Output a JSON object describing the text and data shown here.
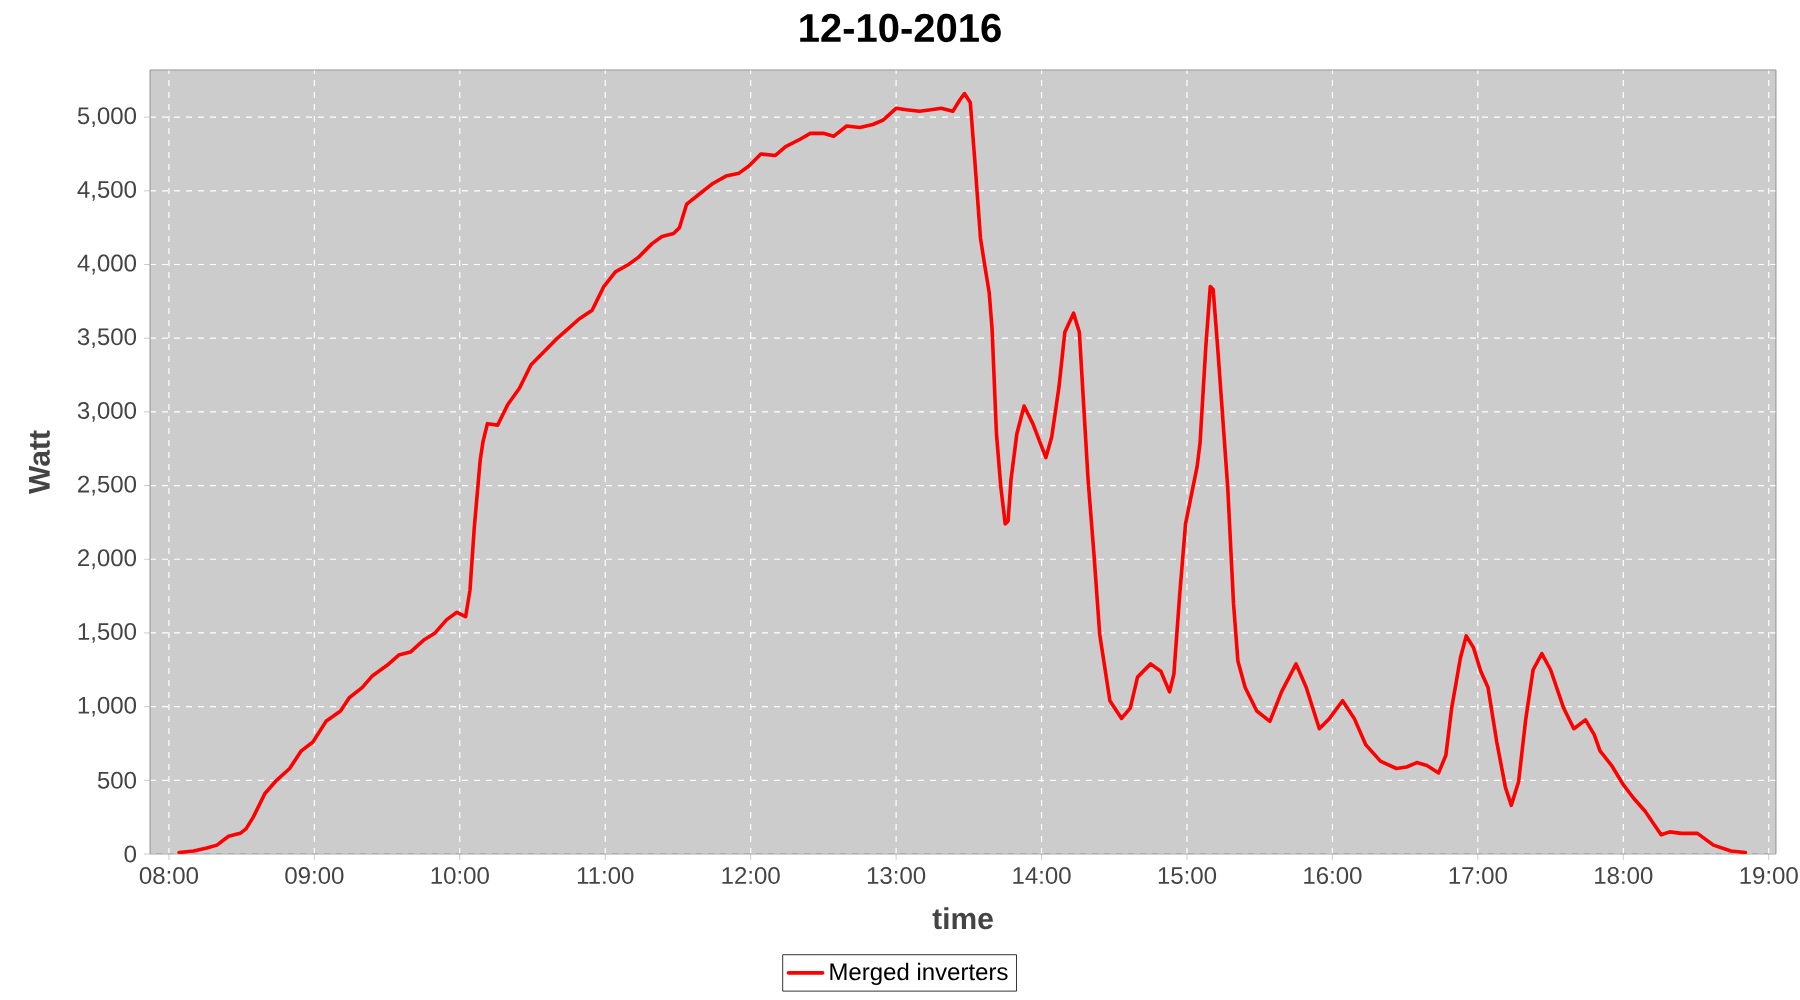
{
  "chart_data": {
    "type": "line",
    "title": "12-10-2016",
    "xlabel": "time",
    "ylabel": "Watt",
    "x": [
      8.07,
      8.17,
      8.26,
      8.33,
      8.41,
      8.49,
      8.53,
      8.58,
      8.66,
      8.74,
      8.83,
      8.91,
      8.99,
      9.08,
      9.18,
      9.24,
      9.33,
      9.4,
      9.5,
      9.58,
      9.66,
      9.75,
      9.83,
      9.91,
      9.98,
      10.04,
      10.07,
      10.1,
      10.14,
      10.16,
      10.19,
      10.26,
      10.33,
      10.41,
      10.49,
      10.57,
      10.66,
      10.74,
      10.82,
      10.91,
      10.99,
      11.07,
      11.16,
      11.23,
      11.32,
      11.39,
      11.47,
      11.51,
      11.56,
      11.65,
      11.74,
      11.83,
      11.92,
      11.99,
      12.07,
      12.17,
      12.24,
      12.34,
      12.41,
      12.5,
      12.57,
      12.66,
      12.75,
      12.84,
      12.91,
      13.0,
      13.07,
      13.16,
      13.24,
      13.31,
      13.39,
      13.44,
      13.47,
      13.51,
      13.54,
      13.58,
      13.61,
      13.64,
      13.66,
      13.69,
      13.72,
      13.75,
      13.77,
      13.79,
      13.83,
      13.88,
      13.94,
      14.03,
      14.07,
      14.12,
      14.16,
      14.22,
      14.26,
      14.32,
      14.36,
      14.4,
      14.47,
      14.55,
      14.61,
      14.66,
      14.75,
      14.82,
      14.88,
      14.91,
      14.95,
      14.99,
      15.07,
      15.09,
      15.13,
      15.16,
      15.18,
      15.21,
      15.24,
      15.28,
      15.32,
      15.35,
      15.4,
      15.48,
      15.57,
      15.65,
      15.75,
      15.82,
      15.91,
      15.98,
      16.07,
      16.15,
      16.23,
      16.33,
      16.44,
      16.51,
      16.58,
      16.65,
      16.73,
      16.78,
      16.82,
      16.88,
      16.92,
      16.97,
      17.02,
      17.07,
      17.13,
      17.19,
      17.23,
      17.28,
      17.33,
      17.38,
      17.44,
      17.5,
      17.59,
      17.66,
      17.74,
      17.8,
      17.84,
      17.92,
      18.0,
      18.07,
      18.15,
      18.26,
      18.32,
      18.4,
      18.51,
      18.62,
      18.74,
      18.84
    ],
    "series": [
      {
        "name": "Merged inverters",
        "color": "#ff0000",
        "values": [
          10,
          20,
          40,
          60,
          120,
          140,
          170,
          250,
          410,
          500,
          580,
          700,
          760,
          900,
          970,
          1060,
          1130,
          1210,
          1280,
          1350,
          1370,
          1450,
          1500,
          1590,
          1640,
          1610,
          1790,
          2220,
          2670,
          2800,
          2920,
          2910,
          3050,
          3160,
          3320,
          3400,
          3490,
          3560,
          3630,
          3690,
          3850,
          3950,
          4000,
          4050,
          4140,
          4190,
          4210,
          4250,
          4410,
          4480,
          4550,
          4600,
          4620,
          4670,
          4750,
          4740,
          4800,
          4850,
          4890,
          4890,
          4870,
          4940,
          4930,
          4950,
          4980,
          5060,
          5050,
          5040,
          5050,
          5060,
          5040,
          5120,
          5160,
          5100,
          4720,
          4180,
          3990,
          3810,
          3560,
          2850,
          2490,
          2240,
          2260,
          2540,
          2850,
          3040,
          2920,
          2690,
          2830,
          3170,
          3540,
          3670,
          3540,
          2540,
          2040,
          1490,
          1040,
          920,
          990,
          1200,
          1290,
          1240,
          1100,
          1220,
          1760,
          2240,
          2630,
          2790,
          3450,
          3850,
          3830,
          3450,
          3040,
          2490,
          1700,
          1310,
          1130,
          970,
          900,
          1100,
          1290,
          1130,
          850,
          920,
          1040,
          920,
          740,
          630,
          580,
          590,
          620,
          600,
          550,
          670,
          990,
          1330,
          1480,
          1400,
          1240,
          1130,
          760,
          450,
          330,
          490,
          920,
          1250,
          1360,
          1250,
          990,
          850,
          910,
          810,
          700,
          600,
          470,
          380,
          290,
          130,
          150,
          140,
          140,
          60,
          20,
          10
        ]
      }
    ],
    "xlim": [
      7.87,
      19.05
    ],
    "ylim": [
      0,
      5320
    ],
    "xticks": [
      {
        "value": 8,
        "label": "08:00"
      },
      {
        "value": 9,
        "label": "09:00"
      },
      {
        "value": 10,
        "label": "10:00"
      },
      {
        "value": 11,
        "label": "11:00"
      },
      {
        "value": 12,
        "label": "12:00"
      },
      {
        "value": 13,
        "label": "13:00"
      },
      {
        "value": 14,
        "label": "14:00"
      },
      {
        "value": 15,
        "label": "15:00"
      },
      {
        "value": 16,
        "label": "16:00"
      },
      {
        "value": 17,
        "label": "17:00"
      },
      {
        "value": 18,
        "label": "18:00"
      },
      {
        "value": 19,
        "label": "19:00"
      }
    ],
    "yticks": [
      0,
      500,
      {
        "value": 1000,
        "label": "1,000"
      },
      {
        "value": 1500,
        "label": "1,500"
      },
      {
        "value": 2000,
        "label": "2,000"
      },
      {
        "value": 2500,
        "label": "2,500"
      },
      {
        "value": 3000,
        "label": "3,000"
      },
      {
        "value": 3500,
        "label": "3,500"
      },
      {
        "value": 4000,
        "label": "4,000"
      },
      {
        "value": 4500,
        "label": "4,500"
      },
      {
        "value": 5000,
        "label": "5,000"
      }
    ],
    "grid": true,
    "legend": "bottom",
    "line_style": "solid"
  }
}
